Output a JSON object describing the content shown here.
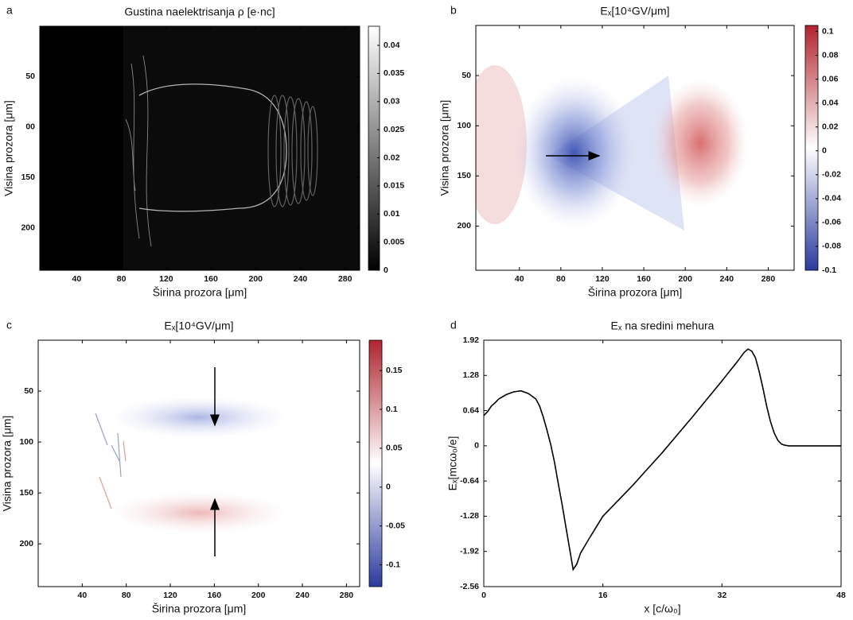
{
  "chart_data": [
    {
      "type": "heatmap",
      "label": "a",
      "title": "Gustina naelektrisanja ρ [e·nc]",
      "x_label": "Širina prozora [μm]",
      "y_label": "Visina prozora [μm]",
      "xlim": [
        7,
        293
      ],
      "xticks": [
        40,
        80,
        120,
        160,
        200,
        240,
        280
      ],
      "ylim": [
        0,
        242
      ],
      "y_inverted": true,
      "yticks": [
        50,
        {
          "value": 100,
          "label": "00"
        },
        150,
        200
      ],
      "colormap": "gray",
      "clim": [
        0,
        0.0434
      ],
      "cticks": [
        0,
        0.005,
        0.01,
        0.015,
        0.02,
        0.025,
        0.03,
        0.035,
        0.04
      ]
    },
    {
      "type": "heatmap",
      "label": "b",
      "title": "Eₓ[10⁴GV/μm]",
      "x_label": "Širina prozora [μm]",
      "y_label": "Visina prozora [μm]",
      "xlim": [
        -2,
        305
      ],
      "xticks": [
        40,
        80,
        120,
        160,
        200,
        240,
        280
      ],
      "ylim": [
        0,
        244
      ],
      "y_inverted": true,
      "yticks": [
        50,
        100,
        150,
        200
      ],
      "colormap": "bwr",
      "clim": [
        -0.1,
        0.105
      ],
      "cticks": [
        -0.1,
        -0.08,
        -0.06,
        -0.04,
        -0.02,
        0,
        0.02,
        0.04,
        0.06,
        0.08,
        0.1
      ]
    },
    {
      "type": "heatmap",
      "label": "c",
      "title": "Eₓ[10⁴GV/μm]",
      "x_label": "Širina prozora [μm]",
      "y_label": "Visina prozora [μm]",
      "xlim": [
        0,
        292
      ],
      "xticks": [
        40,
        80,
        120,
        160,
        200,
        240,
        280
      ],
      "ylim": [
        0,
        242
      ],
      "y_inverted": true,
      "yticks": [
        50,
        100,
        150,
        200
      ],
      "colormap": "bwr",
      "clim": [
        -0.128,
        0.189
      ],
      "cticks": [
        -0.1,
        -0.05,
        0,
        0.05,
        0.1,
        0.15
      ]
    },
    {
      "type": "line",
      "label": "d",
      "title": "Eₓ na sredini mehura",
      "x_label": "x [c/ω₀]",
      "y_label": "Eₓ[mcω₀/e]",
      "xlim": [
        0,
        48
      ],
      "xticks": [
        0,
        16,
        32,
        48
      ],
      "ylim": [
        -2.56,
        1.92
      ],
      "yticks": [
        -2.56,
        -1.92,
        -1.28,
        -0.64,
        0,
        0.64,
        1.28,
        1.92
      ],
      "color": "#000000",
      "x": [
        0,
        0.5,
        1,
        1.5,
        2,
        3,
        4,
        5,
        6,
        7,
        7.5,
        8,
        8.5,
        9,
        9.5,
        10,
        10.5,
        11,
        11.5,
        12,
        12.5,
        13,
        14,
        15,
        16,
        18,
        20,
        22,
        24,
        26,
        28,
        30,
        32,
        33,
        34,
        35,
        35.5,
        36,
        36.5,
        37,
        37.5,
        38,
        38.5,
        39,
        39.5,
        40,
        40.5,
        41,
        42,
        44,
        46,
        48
      ],
      "values": [
        0.55,
        0.62,
        0.72,
        0.78,
        0.85,
        0.93,
        0.98,
        1.0,
        0.95,
        0.85,
        0.72,
        0.52,
        0.28,
        0.02,
        -0.3,
        -0.68,
        -1.05,
        -1.45,
        -1.85,
        -2.25,
        -2.15,
        -1.95,
        -1.72,
        -1.5,
        -1.28,
        -1.0,
        -0.72,
        -0.42,
        -0.12,
        0.2,
        0.52,
        0.85,
        1.18,
        1.35,
        1.52,
        1.7,
        1.76,
        1.72,
        1.6,
        1.35,
        1.05,
        0.72,
        0.45,
        0.24,
        0.1,
        0.03,
        0.01,
        0,
        0,
        0,
        0,
        0
      ]
    }
  ]
}
